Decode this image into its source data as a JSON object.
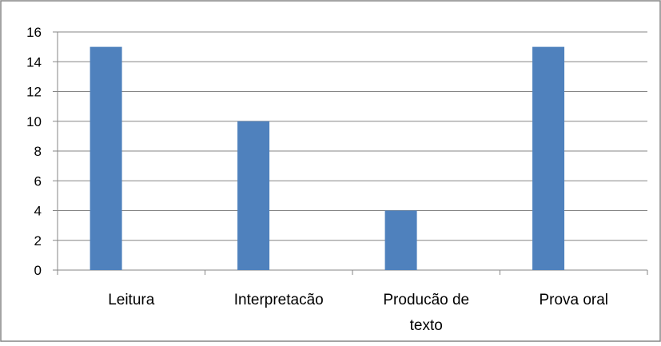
{
  "chart_data": {
    "type": "bar",
    "title": "",
    "xlabel": "",
    "ylabel": "",
    "categories": [
      "Leitura",
      "Interpretacão",
      "Producão de texto",
      "Prova oral"
    ],
    "category_lines": [
      [
        "Leitura"
      ],
      [
        "Interpretacão"
      ],
      [
        "Producão de",
        "texto"
      ],
      [
        "Prova oral"
      ]
    ],
    "values": [
      15,
      10,
      4,
      15
    ],
    "ylim": [
      0,
      16
    ],
    "yticks": [
      0,
      2,
      4,
      6,
      8,
      10,
      12,
      14,
      16
    ],
    "grid": true,
    "legend": "none",
    "colors": {
      "bar": "#4F81BD",
      "grid": "#868686",
      "axis": "#868686",
      "frame": "#868686"
    }
  }
}
